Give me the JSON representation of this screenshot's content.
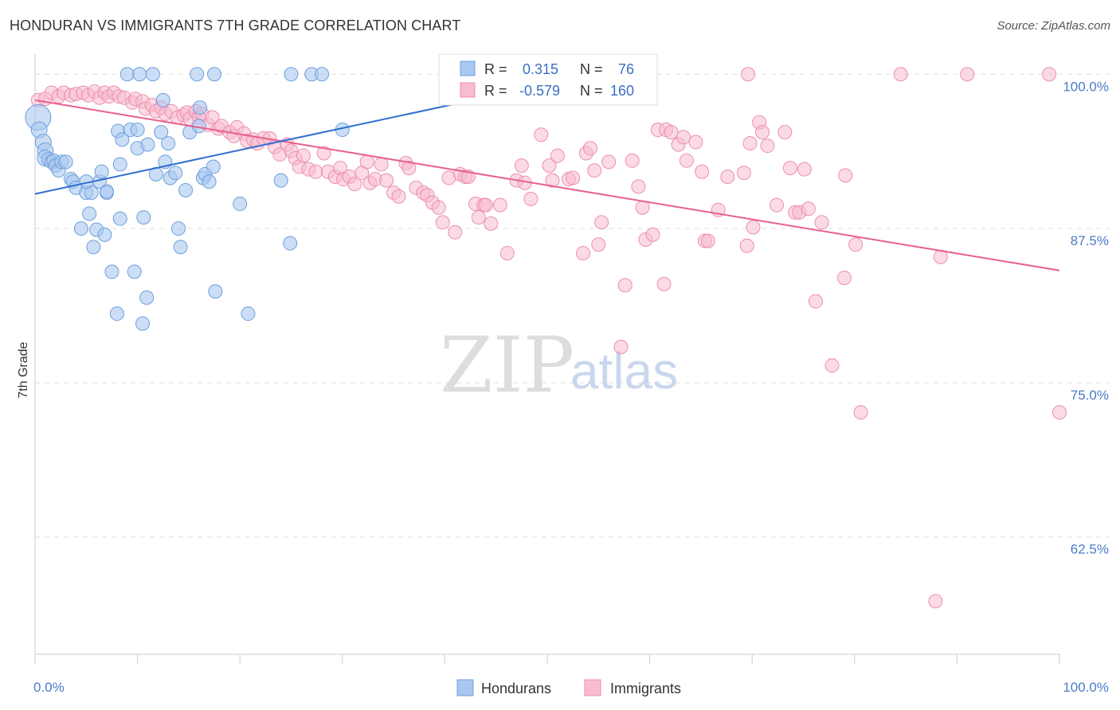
{
  "header": {
    "title": "HONDURAN VS IMMIGRANTS 7TH GRADE CORRELATION CHART",
    "source": "Source: ZipAtlas.com"
  },
  "watermark": {
    "zip": "ZIP",
    "atlas": "atlas"
  },
  "colors": {
    "hondurans_fill": "#a8c8f0",
    "hondurans_stroke": "#6f9fdc",
    "hondurans_line": "#2f6fd0",
    "immigrants_fill": "#f8bcd0",
    "immigrants_stroke": "#ec8fae",
    "immigrants_line": "#e8608e",
    "grid": "#dddddd",
    "tick_text": "#4a7cc9"
  },
  "stats": {
    "hondurans": {
      "r_label": "R =",
      "r_value": "0.315",
      "n_label": "N =",
      "n_value": "76"
    },
    "immigrants": {
      "r_label": "R =",
      "r_value": "-0.579",
      "n_label": "N =",
      "n_value": "160"
    }
  },
  "legend": {
    "hondurans": "Hondurans",
    "immigrants": "Immigrants"
  },
  "chart_data": {
    "type": "scatter",
    "title": "HONDURAN VS IMMIGRANTS 7TH GRADE CORRELATION CHART",
    "xlabel": "",
    "ylabel": "7th Grade",
    "xlim": [
      0,
      100
    ],
    "ylim": [
      53,
      101.5
    ],
    "x_tick_labels": [
      "0.0%",
      "100.0%"
    ],
    "y_ticks": [
      100,
      87.5,
      75,
      62.5
    ],
    "y_tick_labels": [
      "100.0%",
      "87.5%",
      "75.0%",
      "62.5%"
    ],
    "grid": "horizontal dashed",
    "legend_position": "bottom-center",
    "series": [
      {
        "name": "Hondurans",
        "trend": {
          "x": [
            0,
            45
          ],
          "y": [
            90.3,
            98.3
          ]
        },
        "points": [
          [
            0.3,
            96.5
          ],
          [
            0.4,
            95.5
          ],
          [
            0.8,
            94.5
          ],
          [
            1.0,
            93.8
          ],
          [
            1.0,
            93.2
          ],
          [
            1.3,
            93.1
          ],
          [
            1.6,
            92.9
          ],
          [
            1.8,
            93.0
          ],
          [
            2.0,
            92.6
          ],
          [
            2.3,
            92.2
          ],
          [
            2.6,
            92.9
          ],
          [
            3.0,
            92.9
          ],
          [
            3.5,
            91.5
          ],
          [
            3.7,
            91.3
          ],
          [
            4.0,
            90.8
          ],
          [
            5.0,
            90.4
          ],
          [
            5.5,
            90.4
          ],
          [
            5.0,
            91.3
          ],
          [
            6.3,
            91.3
          ],
          [
            6.5,
            92.1
          ],
          [
            7.0,
            90.4
          ],
          [
            7.0,
            90.5
          ],
          [
            5.3,
            88.7
          ],
          [
            4.5,
            87.5
          ],
          [
            5.7,
            86.0
          ],
          [
            6.0,
            87.4
          ],
          [
            6.8,
            87.0
          ],
          [
            7.5,
            84.0
          ],
          [
            8.0,
            80.6
          ],
          [
            8.1,
            95.4
          ],
          [
            8.3,
            88.3
          ],
          [
            8.3,
            92.7
          ],
          [
            8.5,
            94.7
          ],
          [
            9.0,
            100.0
          ],
          [
            9.3,
            95.5
          ],
          [
            9.7,
            84.0
          ],
          [
            10.0,
            95.5
          ],
          [
            10.0,
            94.0
          ],
          [
            10.2,
            100.0
          ],
          [
            10.5,
            79.8
          ],
          [
            10.6,
            88.4
          ],
          [
            10.9,
            81.9
          ],
          [
            11.0,
            94.3
          ],
          [
            11.5,
            100.0
          ],
          [
            11.8,
            91.9
          ],
          [
            12.3,
            95.3
          ],
          [
            12.5,
            97.9
          ],
          [
            12.7,
            92.9
          ],
          [
            13.0,
            94.4
          ],
          [
            13.2,
            91.6
          ],
          [
            13.7,
            92.0
          ],
          [
            14.0,
            87.5
          ],
          [
            14.2,
            86.0
          ],
          [
            14.7,
            90.6
          ],
          [
            15.1,
            95.3
          ],
          [
            15.8,
            100.0
          ],
          [
            16.1,
            97.3
          ],
          [
            16.0,
            95.8
          ],
          [
            16.4,
            91.6
          ],
          [
            16.6,
            91.9
          ],
          [
            17.0,
            91.3
          ],
          [
            17.4,
            92.5
          ],
          [
            17.5,
            100.0
          ],
          [
            17.6,
            82.4
          ],
          [
            20.0,
            89.5
          ],
          [
            20.8,
            80.6
          ],
          [
            24.0,
            91.4
          ],
          [
            24.9,
            86.3
          ],
          [
            25.0,
            100.0
          ],
          [
            27.0,
            100.0
          ],
          [
            28.0,
            100.0
          ],
          [
            30.0,
            95.5
          ],
          [
            40.5,
            100.0
          ],
          [
            41.5,
            100.0
          ],
          [
            43.5,
            100.0
          ],
          [
            51.0,
            100.0
          ]
        ]
      },
      {
        "name": "Immigrants",
        "trend": {
          "x": [
            0,
            100
          ],
          "y": [
            97.9,
            84.1
          ]
        },
        "points": [
          [
            0.3,
            97.9
          ],
          [
            1.0,
            98.0
          ],
          [
            1.6,
            98.5
          ],
          [
            2.3,
            98.2
          ],
          [
            2.8,
            98.5
          ],
          [
            3.5,
            98.3
          ],
          [
            4.0,
            98.4
          ],
          [
            4.7,
            98.5
          ],
          [
            5.2,
            98.3
          ],
          [
            5.8,
            98.6
          ],
          [
            6.3,
            98.1
          ],
          [
            6.8,
            98.5
          ],
          [
            7.2,
            98.2
          ],
          [
            7.7,
            98.5
          ],
          [
            8.2,
            98.2
          ],
          [
            8.7,
            98.1
          ],
          [
            9.5,
            97.7
          ],
          [
            9.8,
            98.0
          ],
          [
            10.5,
            97.8
          ],
          [
            10.8,
            97.2
          ],
          [
            11.4,
            97.5
          ],
          [
            11.8,
            97.0
          ],
          [
            12.3,
            97.3
          ],
          [
            12.7,
            96.8
          ],
          [
            13.3,
            97.0
          ],
          [
            13.9,
            96.5
          ],
          [
            14.5,
            96.7
          ],
          [
            14.8,
            96.9
          ],
          [
            15.1,
            96.4
          ],
          [
            15.7,
            97.0
          ],
          [
            16.0,
            96.5
          ],
          [
            16.3,
            96.8
          ],
          [
            16.9,
            95.9
          ],
          [
            17.3,
            96.5
          ],
          [
            17.9,
            95.6
          ],
          [
            18.2,
            95.8
          ],
          [
            19.0,
            95.3
          ],
          [
            19.4,
            95.0
          ],
          [
            19.7,
            95.7
          ],
          [
            20.4,
            95.2
          ],
          [
            20.7,
            94.6
          ],
          [
            21.3,
            94.7
          ],
          [
            21.7,
            94.4
          ],
          [
            22.3,
            94.8
          ],
          [
            22.9,
            94.8
          ],
          [
            23.4,
            94.1
          ],
          [
            23.9,
            93.5
          ],
          [
            24.6,
            94.3
          ],
          [
            25.0,
            93.8
          ],
          [
            25.4,
            93.2
          ],
          [
            25.8,
            92.5
          ],
          [
            26.2,
            93.4
          ],
          [
            26.7,
            92.3
          ],
          [
            27.4,
            92.1
          ],
          [
            28.2,
            93.6
          ],
          [
            28.6,
            92.1
          ],
          [
            29.3,
            91.7
          ],
          [
            29.8,
            92.4
          ],
          [
            30.1,
            91.5
          ],
          [
            30.7,
            91.7
          ],
          [
            31.2,
            91.1
          ],
          [
            31.9,
            92.0
          ],
          [
            32.4,
            92.9
          ],
          [
            32.7,
            91.2
          ],
          [
            33.2,
            91.5
          ],
          [
            33.8,
            92.7
          ],
          [
            34.3,
            91.4
          ],
          [
            35.0,
            90.4
          ],
          [
            35.5,
            90.1
          ],
          [
            36.2,
            92.8
          ],
          [
            36.5,
            92.4
          ],
          [
            37.2,
            90.8
          ],
          [
            37.9,
            90.4
          ],
          [
            38.3,
            90.2
          ],
          [
            38.8,
            89.6
          ],
          [
            39.4,
            89.2
          ],
          [
            39.8,
            88.0
          ],
          [
            40.4,
            91.6
          ],
          [
            41.0,
            87.2
          ],
          [
            41.5,
            91.9
          ],
          [
            42.0,
            91.7
          ],
          [
            42.3,
            91.7
          ],
          [
            43.0,
            89.5
          ],
          [
            43.3,
            88.4
          ],
          [
            43.8,
            89.4
          ],
          [
            44.0,
            89.4
          ],
          [
            44.5,
            87.9
          ],
          [
            45.4,
            89.4
          ],
          [
            46.1,
            85.5
          ],
          [
            47.0,
            91.4
          ],
          [
            47.5,
            92.6
          ],
          [
            47.8,
            91.2
          ],
          [
            48.4,
            89.9
          ],
          [
            49.4,
            95.1
          ],
          [
            50.2,
            92.6
          ],
          [
            50.5,
            91.4
          ],
          [
            51.0,
            93.4
          ],
          [
            52.1,
            91.5
          ],
          [
            52.5,
            91.6
          ],
          [
            53.5,
            85.5
          ],
          [
            53.8,
            93.6
          ],
          [
            54.2,
            94.0
          ],
          [
            54.6,
            92.2
          ],
          [
            55.0,
            86.2
          ],
          [
            55.3,
            88.0
          ],
          [
            56.0,
            92.9
          ],
          [
            57.2,
            77.9
          ],
          [
            57.6,
            82.9
          ],
          [
            58.3,
            93.0
          ],
          [
            58.9,
            90.9
          ],
          [
            59.3,
            89.2
          ],
          [
            59.6,
            86.6
          ],
          [
            60.3,
            87.0
          ],
          [
            60.8,
            95.5
          ],
          [
            61.4,
            83.0
          ],
          [
            61.6,
            95.5
          ],
          [
            62.1,
            95.3
          ],
          [
            62.8,
            94.3
          ],
          [
            63.3,
            94.9
          ],
          [
            63.6,
            93.0
          ],
          [
            64.5,
            94.5
          ],
          [
            65.1,
            92.1
          ],
          [
            65.4,
            86.5
          ],
          [
            65.7,
            86.5
          ],
          [
            66.7,
            89.0
          ],
          [
            67.6,
            91.7
          ],
          [
            69.2,
            92.0
          ],
          [
            69.6,
            100.0
          ],
          [
            69.5,
            86.1
          ],
          [
            69.8,
            94.4
          ],
          [
            70.1,
            87.6
          ],
          [
            70.7,
            96.1
          ],
          [
            71.0,
            95.3
          ],
          [
            71.5,
            94.2
          ],
          [
            72.4,
            89.4
          ],
          [
            73.2,
            95.3
          ],
          [
            73.7,
            92.4
          ],
          [
            74.2,
            88.8
          ],
          [
            74.6,
            88.8
          ],
          [
            75.1,
            92.3
          ],
          [
            75.5,
            89.1
          ],
          [
            76.2,
            81.6
          ],
          [
            76.8,
            88.0
          ],
          [
            77.8,
            76.4
          ],
          [
            79.0,
            83.5
          ],
          [
            79.1,
            91.8
          ],
          [
            80.1,
            86.2
          ],
          [
            80.6,
            72.6
          ],
          [
            84.5,
            100.0
          ],
          [
            87.9,
            57.3
          ],
          [
            88.4,
            85.2
          ],
          [
            91.0,
            100.0
          ],
          [
            99.0,
            100.0
          ],
          [
            100.0,
            72.6
          ]
        ]
      }
    ]
  }
}
